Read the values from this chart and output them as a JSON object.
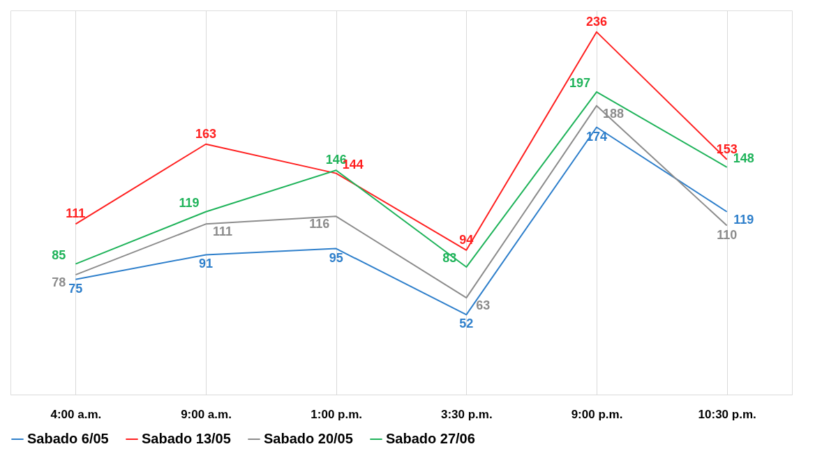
{
  "chart_data": {
    "type": "line",
    "categories": [
      "4:00 a.m.",
      "9:00 a.m.",
      "1:00 p.m.",
      "3:30 p.m.",
      "9:00 p.m.",
      "10:30 p.m."
    ],
    "series": [
      {
        "name": "Sabado 6/05",
        "color": "#2e7fcb",
        "values": [
          75,
          91,
          95,
          52,
          174,
          119
        ]
      },
      {
        "name": "Sabado 13/05",
        "color": "#ff2020",
        "values": [
          111,
          163,
          144,
          94,
          236,
          153
        ]
      },
      {
        "name": "Sabado 20/05",
        "color": "#8c8c8c",
        "values": [
          78,
          111,
          116,
          63,
          188,
          110
        ]
      },
      {
        "name": "Sabado 27/06",
        "color": "#1fb35a",
        "values": [
          85,
          119,
          146,
          83,
          197,
          148
        ]
      }
    ],
    "ylim": [
      0,
      250
    ],
    "tick_labels": "x",
    "grid": "x",
    "legend": "bottom",
    "data_labels": true,
    "marker": "none",
    "line_style": "solid"
  }
}
